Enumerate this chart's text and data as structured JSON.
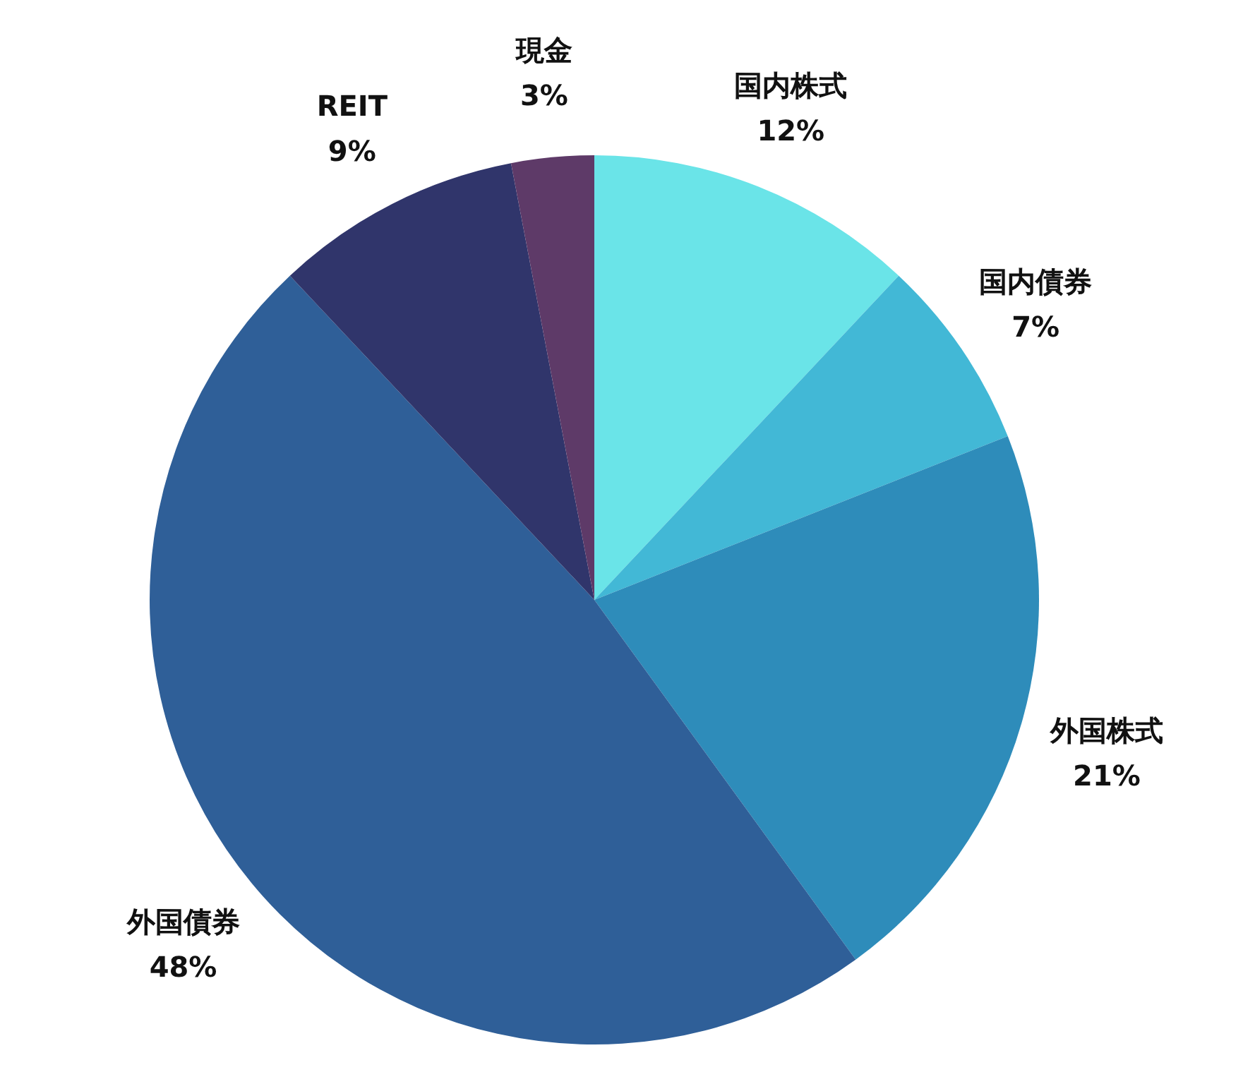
{
  "chart_data": {
    "type": "pie",
    "categories": [
      "国内株式",
      "国内債券",
      "外国株式",
      "外国債券",
      "REIT",
      "現金"
    ],
    "values": [
      12,
      7,
      21,
      48,
      9,
      3
    ],
    "colors": [
      "#6ae4e8",
      "#42b8d6",
      "#2e8cba",
      "#2f5f98",
      "#30356b",
      "#5e3a68"
    ],
    "value_labels": [
      "12%",
      "7%",
      "21%",
      "48%",
      "9%",
      "3%"
    ]
  }
}
